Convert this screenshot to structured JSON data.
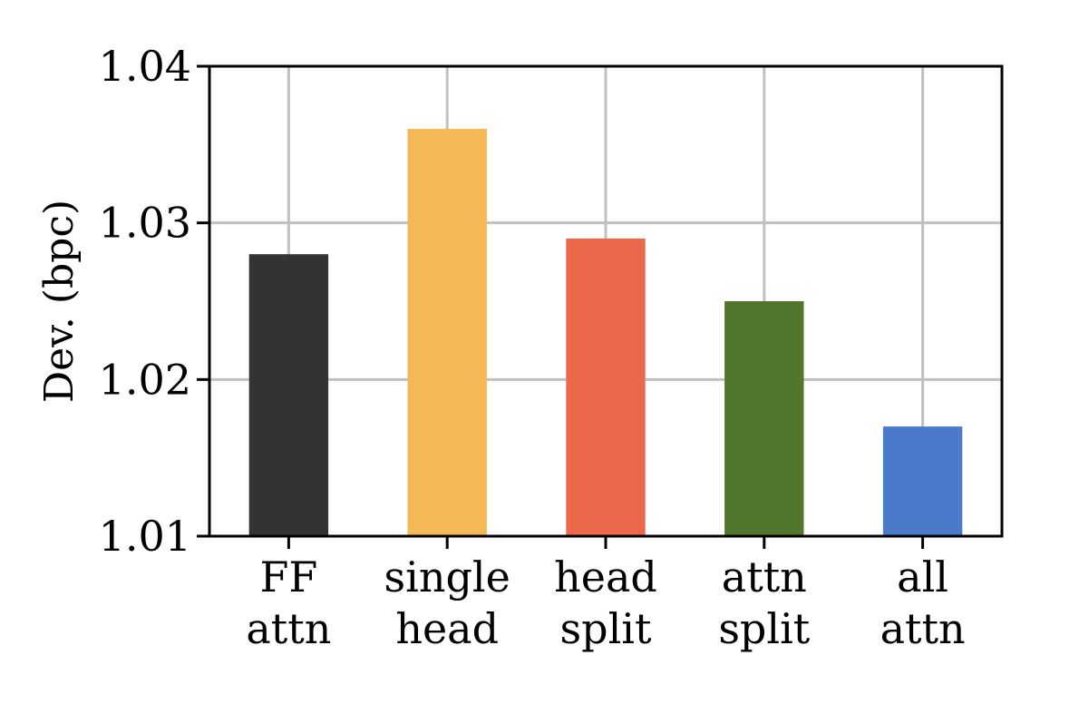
{
  "chart_data": {
    "type": "bar",
    "categories": [
      [
        "FF",
        "attn"
      ],
      [
        "single",
        "head"
      ],
      [
        "head",
        "split"
      ],
      [
        "attn",
        "split"
      ],
      [
        "all",
        "attn"
      ]
    ],
    "values": [
      1.028,
      1.036,
      1.029,
      1.025,
      1.017
    ],
    "colors": [
      "#333333",
      "#f4b956",
      "#ec684b",
      "#53762f",
      "#4a7ac9"
    ],
    "title": "",
    "xlabel": "",
    "ylabel": "Dev. (bpc)",
    "ylim": [
      1.01,
      1.04
    ],
    "yticks": [
      "1.01",
      "1.02",
      "1.03",
      "1.04"
    ],
    "grid": true,
    "legend": "none"
  }
}
